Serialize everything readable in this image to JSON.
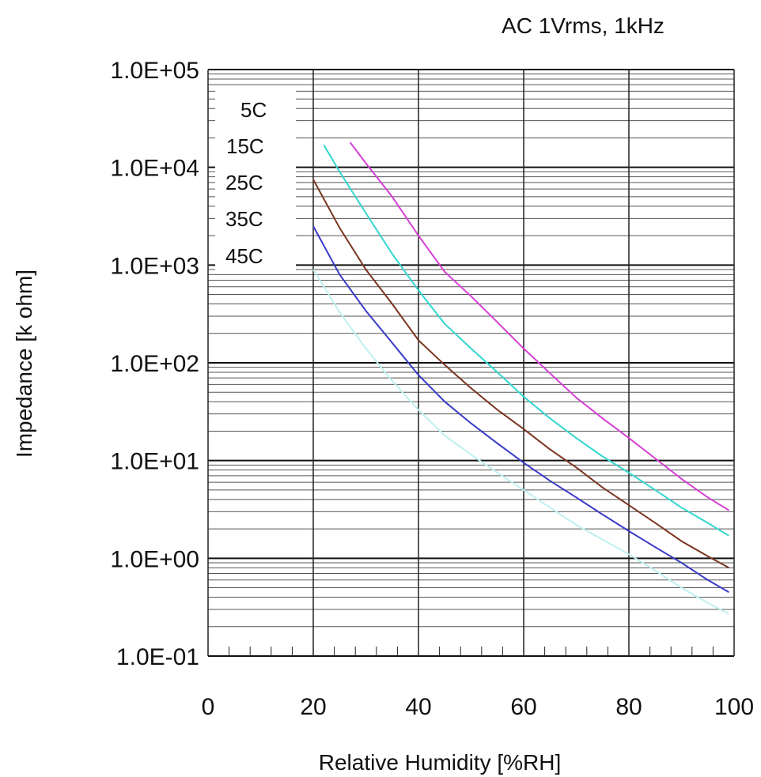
{
  "chart_data": {
    "type": "line",
    "condition": "AC 1Vrms, 1kHz",
    "xlabel": "Relative Humidity [%RH]",
    "ylabel": "Impedance [k ohm]",
    "xlim": [
      0,
      100
    ],
    "ylim": [
      0.1,
      100000
    ],
    "yscale": "log",
    "grid": true,
    "legend_position": "top-left",
    "x_ticks": [
      "0",
      "20",
      "40",
      "60",
      "80",
      "100"
    ],
    "y_ticks": [
      "1.0E-01",
      "1.0E+00",
      "1.0E+01",
      "1.0E+02",
      "1.0E+03",
      "1.0E+04",
      "1.0E+05"
    ],
    "series": [
      {
        "name": "5C",
        "color": "#d63fd6",
        "x": [
          27,
          30,
          35,
          40,
          45,
          50,
          55,
          60,
          65,
          70,
          75,
          80,
          85,
          90,
          95,
          99
        ],
        "y": [
          18000,
          11000,
          5000,
          2000,
          850,
          480,
          260,
          140,
          78,
          44,
          27,
          17,
          10.5,
          6.5,
          4.2,
          3.1
        ]
      },
      {
        "name": "15C",
        "color": "#33d6d0",
        "x": [
          22,
          25,
          30,
          35,
          40,
          45,
          50,
          55,
          60,
          65,
          70,
          75,
          80,
          85,
          90,
          95,
          99
        ],
        "y": [
          17000,
          9000,
          3400,
          1300,
          550,
          250,
          140,
          80,
          45,
          27,
          17,
          11,
          7.5,
          5,
          3.3,
          2.3,
          1.7
        ]
      },
      {
        "name": "25C",
        "color": "#7a3520",
        "x": [
          20,
          25,
          30,
          35,
          40,
          45,
          50,
          55,
          60,
          65,
          70,
          75,
          80,
          85,
          90,
          95,
          99
        ],
        "y": [
          7500,
          2400,
          900,
          400,
          170,
          95,
          55,
          33,
          21,
          13,
          8.5,
          5.3,
          3.5,
          2.3,
          1.5,
          1.05,
          0.8
        ]
      },
      {
        "name": "35C",
        "color": "#3a3ac8",
        "x": [
          20,
          25,
          30,
          35,
          40,
          45,
          50,
          55,
          60,
          65,
          70,
          75,
          80,
          85,
          90,
          95,
          99
        ],
        "y": [
          2500,
          800,
          340,
          160,
          75,
          40,
          24,
          15,
          9.5,
          6.2,
          4.2,
          2.8,
          1.9,
          1.3,
          0.9,
          0.6,
          0.45
        ]
      },
      {
        "name": "45C",
        "color": "#bff0f0",
        "x": [
          20,
          25,
          30,
          35,
          40,
          45,
          50,
          55,
          60,
          65,
          70,
          75,
          80,
          85,
          90,
          95,
          99
        ],
        "y": [
          900,
          330,
          140,
          65,
          33,
          18,
          11.5,
          7.5,
          5,
          3.3,
          2.2,
          1.55,
          1.1,
          0.75,
          0.5,
          0.35,
          0.27
        ]
      }
    ]
  }
}
